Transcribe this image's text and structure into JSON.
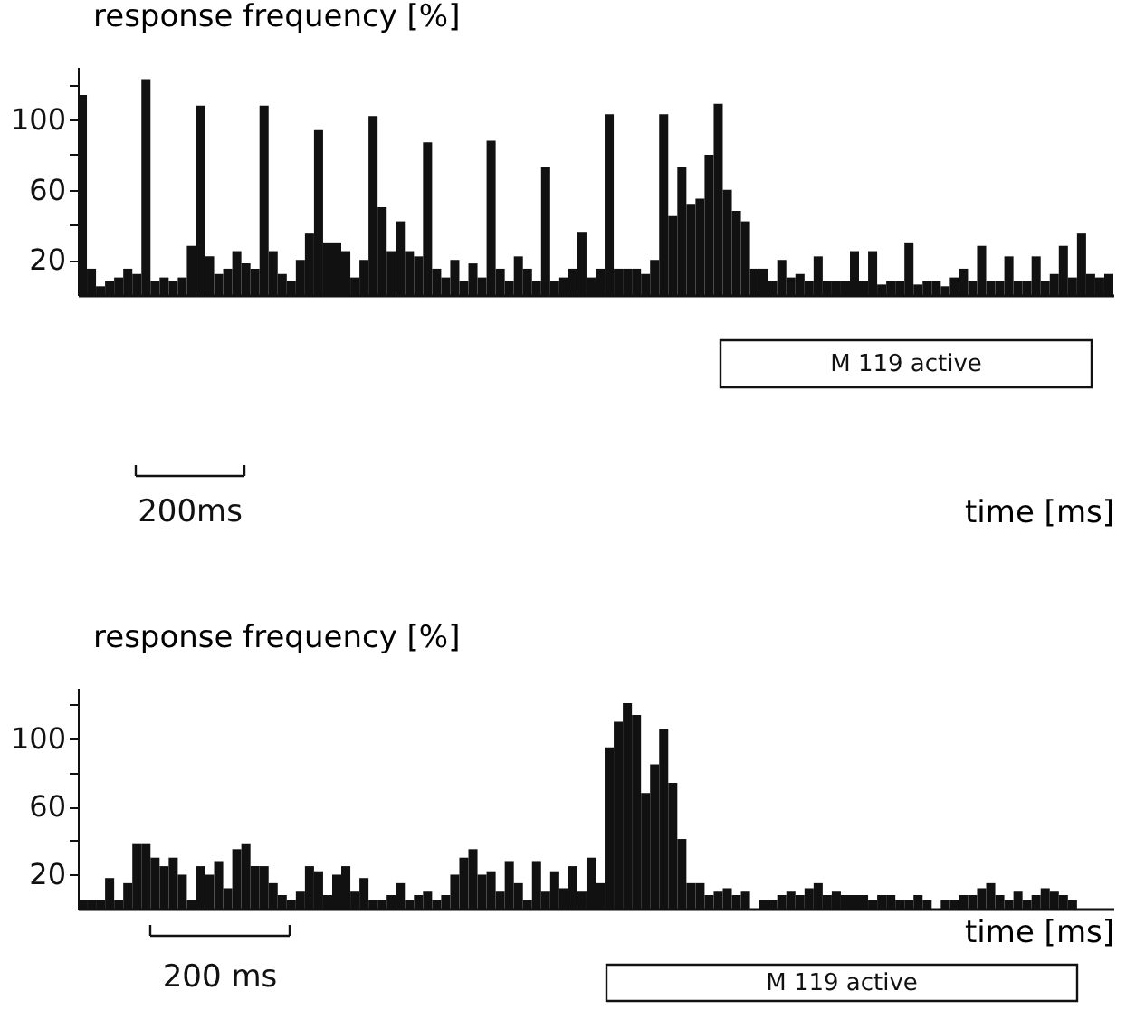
{
  "chart_data": [
    {
      "type": "bar",
      "ylabel": "response frequency [%]",
      "xlabel": "time [ms]",
      "color": "#111111",
      "ylim": [
        0,
        130
      ],
      "yticks": [
        20,
        {
          "value": 40,
          "label": null
        },
        60,
        {
          "value": 80,
          "label": null
        },
        100,
        {
          "value": 120,
          "label": null
        }
      ],
      "grid": false,
      "tick_labels": "y",
      "annotations": [
        "M 119 active",
        "200ms"
      ],
      "categories": [
        null,
        null,
        null,
        null,
        null,
        null,
        null,
        null,
        null,
        null,
        null,
        null,
        null,
        null,
        null,
        null,
        null,
        null,
        null,
        null,
        null,
        null,
        null,
        null,
        null,
        null,
        null,
        null,
        null,
        null,
        null,
        null,
        null,
        null,
        null,
        null,
        null,
        null,
        null,
        null,
        null,
        null,
        null,
        null,
        null,
        null,
        null,
        null,
        null,
        null,
        null,
        null,
        null,
        null,
        null,
        null,
        null,
        null,
        null,
        null,
        null,
        null,
        null,
        null,
        null,
        null,
        null,
        null,
        null,
        null,
        null,
        null,
        null,
        null,
        null,
        null,
        null,
        null,
        null,
        null,
        null,
        null,
        null,
        null,
        null,
        null,
        null,
        null,
        null,
        null,
        null,
        null,
        null,
        null,
        null,
        null,
        null,
        null,
        null,
        null,
        null,
        null,
        null,
        null,
        null,
        null,
        null,
        null,
        null,
        null,
        null,
        null,
        null,
        null
      ],
      "values": [
        114,
        15,
        5,
        8,
        10,
        15,
        12,
        123,
        8,
        10,
        8,
        10,
        28,
        108,
        22,
        12,
        15,
        25,
        18,
        15,
        108,
        25,
        12,
        8,
        20,
        35,
        94,
        30,
        30,
        25,
        10,
        20,
        102,
        50,
        25,
        42,
        25,
        22,
        87,
        15,
        10,
        20,
        8,
        18,
        10,
        88,
        15,
        8,
        22,
        15,
        8,
        73,
        8,
        10,
        15,
        36,
        10,
        15,
        103,
        15,
        15,
        15,
        12,
        20,
        103,
        45,
        73,
        52,
        55,
        80,
        109,
        60,
        48,
        42,
        15,
        15,
        8,
        20,
        10,
        12,
        8,
        22,
        8,
        8,
        8,
        25,
        8,
        25,
        6,
        8,
        8,
        30,
        6,
        8,
        8,
        5,
        10,
        15,
        8,
        28,
        8,
        8,
        22,
        8,
        8,
        22,
        8,
        12,
        28,
        10,
        35,
        12,
        10,
        12
      ]
    },
    {
      "type": "bar",
      "ylabel": "response frequency [%]",
      "xlabel": "time [ms]",
      "color": "#111111",
      "ylim": [
        0,
        130
      ],
      "yticks": [
        20,
        {
          "value": 40,
          "label": null
        },
        60,
        {
          "value": 80,
          "label": null
        },
        100,
        {
          "value": 120,
          "label": null
        }
      ],
      "grid": false,
      "tick_labels": "y",
      "annotations": [
        "M 119 active",
        "200 ms"
      ],
      "categories": [
        null,
        null,
        null,
        null,
        null,
        null,
        null,
        null,
        null,
        null,
        null,
        null,
        null,
        null,
        null,
        null,
        null,
        null,
        null,
        null,
        null,
        null,
        null,
        null,
        null,
        null,
        null,
        null,
        null,
        null,
        null,
        null,
        null,
        null,
        null,
        null,
        null,
        null,
        null,
        null,
        null,
        null,
        null,
        null,
        null,
        null,
        null,
        null,
        null,
        null,
        null,
        null,
        null,
        null,
        null,
        null,
        null,
        null,
        null,
        null,
        null,
        null,
        null,
        null,
        null,
        null,
        null,
        null,
        null,
        null,
        null,
        null,
        null,
        null,
        null,
        null,
        null,
        null,
        null,
        null,
        null,
        null,
        null,
        null,
        null,
        null,
        null,
        null,
        null,
        null,
        null,
        null,
        null,
        null,
        null,
        null,
        null,
        null,
        null,
        null,
        null,
        null,
        null,
        null,
        null,
        null,
        null,
        null,
        null,
        null,
        null,
        null,
        null,
        null
      ],
      "values": [
        5,
        5,
        5,
        18,
        5,
        15,
        38,
        38,
        30,
        25,
        30,
        20,
        5,
        25,
        20,
        28,
        12,
        35,
        38,
        25,
        25,
        15,
        8,
        5,
        10,
        25,
        22,
        8,
        20,
        25,
        10,
        18,
        5,
        5,
        8,
        15,
        5,
        8,
        10,
        5,
        8,
        20,
        30,
        35,
        20,
        22,
        10,
        28,
        15,
        5,
        28,
        10,
        22,
        12,
        25,
        10,
        30,
        15,
        95,
        110,
        121,
        114,
        68,
        85,
        106,
        74,
        41,
        15,
        15,
        8,
        10,
        12,
        8,
        10,
        0,
        5,
        5,
        8,
        10,
        8,
        12,
        15,
        8,
        10,
        8,
        8,
        8,
        5,
        8,
        8,
        5,
        5,
        8,
        5,
        0,
        5,
        5,
        8,
        8,
        12,
        15,
        8,
        5,
        10,
        5,
        8,
        12,
        10,
        8,
        5,
        0,
        0,
        0,
        0
      ]
    }
  ]
}
